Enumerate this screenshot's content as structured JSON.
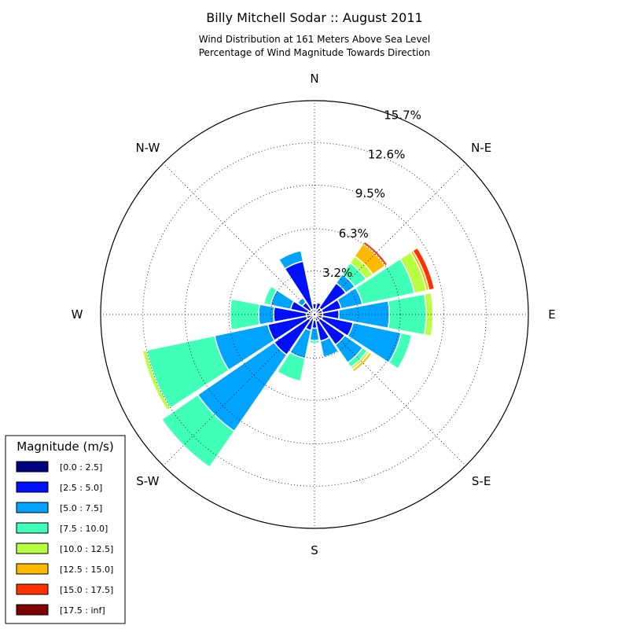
{
  "chart_data": {
    "type": "windrose",
    "title": "Billy Mitchell Sodar :: August 2011",
    "subtitle_lines": [
      "Wind Distribution at 161 Meters Above Sea Level",
      "Percentage of Wind Magnitude Towards Direction"
    ],
    "directions": [
      "N",
      "N-E",
      "E",
      "S-E",
      "S",
      "S-W",
      "W",
      "N-W"
    ],
    "ring_labels": [
      "3.2%",
      "6.3%",
      "9.5%",
      "12.6%",
      "15.7%"
    ],
    "ring_values": [
      3.2,
      6.3,
      9.5,
      12.6,
      15.7
    ],
    "max_radius_value": 15.7,
    "legend": {
      "title": "Magnitude (m/s)",
      "placement": "lower-left",
      "bins": [
        "[0.0 : 2.5]",
        "[2.5 : 5.0]",
        "[5.0 : 7.5]",
        "[7.5 : 10.0]",
        "[10.0 : 12.5]",
        "[12.5 : 15.0]",
        "[15.0 : 17.5]",
        "[17.5 : inf]"
      ],
      "colors": [
        "#000080",
        "#0010ff",
        "#00a4ff",
        "#40ffb7",
        "#b7ff40",
        "#ffb900",
        "#ff3000",
        "#800000"
      ]
    },
    "sector_count": 16,
    "sectors": [
      {
        "direction_deg": 0,
        "cumulative": [
          0.4,
          0.8
        ]
      },
      {
        "direction_deg": 22.5,
        "cumulative": [
          0.4,
          0.9,
          1.0,
          1.05
        ]
      },
      {
        "direction_deg": 45,
        "cumulative": [
          0.6,
          2.8,
          3.6,
          4.6,
          5.2,
          6.3,
          6.5
        ]
      },
      {
        "direction_deg": 67.5,
        "cumulative": [
          0.6,
          2.0,
          3.6,
          7.5,
          8.4,
          8.6,
          9.0
        ]
      },
      {
        "direction_deg": 90,
        "cumulative": [
          0.6,
          1.8,
          5.5,
          8.2,
          8.7
        ]
      },
      {
        "direction_deg": 112.5,
        "cumulative": [
          0.6,
          2.9,
          6.5,
          7.3
        ]
      },
      {
        "direction_deg": 135,
        "cumulative": [
          0.5,
          2.7,
          4.3,
          4.7,
          4.9,
          5.1
        ]
      },
      {
        "direction_deg": 157.5,
        "cumulative": [
          0.5,
          2.0,
          3.2
        ]
      },
      {
        "direction_deg": 180,
        "cumulative": [
          0.4,
          1.0,
          1.9,
          2.1
        ]
      },
      {
        "direction_deg": 202.5,
        "cumulative": [
          0.3,
          1.2,
          3.3,
          5.0
        ]
      },
      {
        "direction_deg": 225,
        "cumulative": [
          0.5,
          3.6,
          10.4,
          13.6
        ]
      },
      {
        "direction_deg": 247.5,
        "cumulative": [
          0.6,
          3.5,
          7.5,
          12.6,
          12.9
        ]
      },
      {
        "direction_deg": 270,
        "cumulative": [
          0.6,
          3.0,
          4.1,
          6.2
        ]
      },
      {
        "direction_deg": 292.5,
        "cumulative": [
          0.5,
          1.8,
          3.3,
          3.8
        ]
      },
      {
        "direction_deg": 315,
        "cumulative": [
          0.4,
          1.1,
          1.5
        ]
      },
      {
        "direction_deg": 337.5,
        "cumulative": [
          0.4,
          4.0,
          4.8
        ]
      }
    ]
  }
}
